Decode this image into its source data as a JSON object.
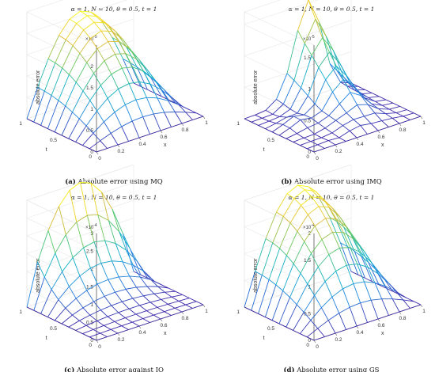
{
  "panels": [
    {
      "id": "a",
      "caption_label": "(a)",
      "caption_text": " Absolute error using MQ",
      "title": "α = 1, N = 10, θ = 0.5, t = 1",
      "zlabel": "absolute error",
      "xlabel": "x",
      "ylabel": "t",
      "exponent": "×10",
      "exponent_power": "-5",
      "z_ticks": [
        "0",
        "0.5",
        "1",
        "1.5",
        "2"
      ],
      "x_ticks": [
        "0",
        "0.2",
        "0.4",
        "0.6",
        "0.8",
        "1"
      ],
      "t_ticks": [
        "0",
        "0.5",
        "1"
      ]
    },
    {
      "id": "b",
      "caption_label": "(b)",
      "caption_text": " Absolute error using IMQ",
      "title": "α = 1, N = 10, θ = 0.5, t = 1",
      "zlabel": "absolute error",
      "xlabel": "x",
      "ylabel": "t",
      "exponent": "×10",
      "exponent_power": "-5",
      "z_ticks": [
        "0",
        "0.5",
        "1",
        "1.5"
      ],
      "x_ticks": [
        "0",
        "0.2",
        "0.4",
        "0.6",
        "0.8",
        "1"
      ],
      "t_ticks": [
        "0",
        "0.5",
        "1"
      ]
    },
    {
      "id": "c",
      "caption_label": "(c)",
      "caption_text": " Absolute error against IQ",
      "title": "α = 1, N = 10, θ = 0.5, t = 1",
      "zlabel": "absolute error",
      "xlabel": "x",
      "ylabel": "t",
      "exponent": "×10",
      "exponent_power": "-4",
      "z_ticks": [
        "0",
        "0.5",
        "1",
        "1.5",
        "2",
        "2.5",
        "3"
      ],
      "x_ticks": [
        "0",
        "0.2",
        "0.4",
        "0.6",
        "0.8",
        "1"
      ],
      "t_ticks": [
        "0",
        "0.5",
        "1"
      ]
    },
    {
      "id": "d",
      "caption_label": "(d)",
      "caption_text": " Absolute error using GS",
      "title": "α = 1, N = 10, θ = 0.5, t = 1",
      "zlabel": "absolute error",
      "xlabel": "x",
      "ylabel": "t",
      "exponent": "×10",
      "exponent_power": "-4",
      "z_ticks": [
        "0",
        "0.5",
        "1",
        "1.5",
        "2"
      ],
      "x_ticks": [
        "0",
        "0.2",
        "0.4",
        "0.6",
        "0.8",
        "1"
      ],
      "t_ticks": [
        "0",
        "0.5",
        "1"
      ]
    }
  ],
  "chart_data": [
    {
      "type": "surface",
      "panel": "a",
      "x": [
        0,
        0.1,
        0.2,
        0.3,
        0.4,
        0.5,
        0.6,
        0.7,
        0.8,
        0.9,
        1
      ],
      "t": [
        0,
        0.1,
        0.2,
        0.3,
        0.4,
        0.5,
        0.6,
        0.7,
        0.8,
        0.9,
        1
      ],
      "zlim": [
        0,
        2.5
      ],
      "z_scale_exponent": -5,
      "peak": 2.1,
      "shape": "smooth dome, zero on the x = 0, x = 1 and t = 0 edges, largest near t = 1 and x = 0.5",
      "colormap": "parula"
    },
    {
      "type": "surface",
      "panel": "b",
      "x": [
        0,
        0.1,
        0.2,
        0.3,
        0.4,
        0.5,
        0.6,
        0.7,
        0.8,
        0.9,
        1
      ],
      "t": [
        0,
        0.1,
        0.2,
        0.3,
        0.4,
        0.5,
        0.6,
        0.7,
        0.8,
        0.9,
        1
      ],
      "zlim": [
        0,
        1.7
      ],
      "z_scale_exponent": -5,
      "peak": 1.6,
      "shape": "irregular ridge peaking near x = 0.6 at t = 1, small bumps near t = 0.5",
      "colormap": "parula"
    },
    {
      "type": "surface",
      "panel": "c",
      "x": [
        0,
        0.1,
        0.2,
        0.3,
        0.4,
        0.5,
        0.6,
        0.7,
        0.8,
        0.9,
        1
      ],
      "t": [
        0,
        0.1,
        0.2,
        0.3,
        0.4,
        0.5,
        0.6,
        0.7,
        0.8,
        0.9,
        1
      ],
      "zlim": [
        0,
        3
      ],
      "z_scale_exponent": -4,
      "peak": 2.85,
      "shape": "error grows sharply toward t = 1, nearly flat elsewhere",
      "colormap": "parula"
    },
    {
      "type": "surface",
      "panel": "d",
      "x": [
        0,
        0.1,
        0.2,
        0.3,
        0.4,
        0.5,
        0.6,
        0.7,
        0.8,
        0.9,
        1
      ],
      "t": [
        0,
        0.1,
        0.2,
        0.3,
        0.4,
        0.5,
        0.6,
        0.7,
        0.8,
        0.9,
        1
      ],
      "zlim": [
        0,
        2
      ],
      "z_scale_exponent": -4,
      "peak": 1.95,
      "shape": "smooth dome, zero on the x = 0, x = 1 and t = 0 edges, largest near t = 1 and x = 0.5",
      "colormap": "parula"
    }
  ]
}
